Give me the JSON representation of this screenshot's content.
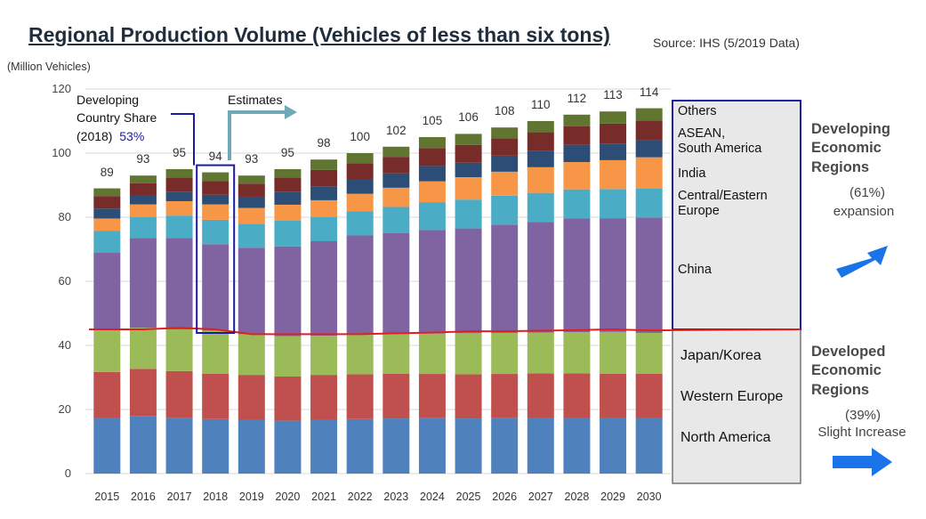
{
  "title": "Regional Production Volume (Vehicles of less than six tons)",
  "source": "Source:  IHS (5/2019 Data)",
  "unit": "(Million Vehicles)",
  "annotation": {
    "developing_share_line1": "Developing",
    "developing_share_line2": "Country Share",
    "developing_share_year": "(2018)",
    "developing_share_value": "53%",
    "estimates": "Estimates"
  },
  "legend_labels": {
    "others": "Others",
    "asean_line1": "ASEAN,",
    "asean_line2": "South America",
    "india": "India",
    "ce_line1": "Central/Eastern",
    "ce_line2": "Europe",
    "china": "China",
    "japan_korea": "Japan/Korea",
    "western_europe": "Western Europe",
    "north_america": "North America"
  },
  "side": {
    "developing_line1": "Developing",
    "developing_line2": "Economic",
    "developing_line3": "Regions",
    "developing_pct": "(61%)",
    "developing_note": "expansion",
    "developed_line1": "Developed",
    "developed_line2": "Economic",
    "developed_line3": "Regions",
    "developed_pct": "(39%)",
    "developed_note": "Slight Increase"
  },
  "colors": {
    "north_america": "#4f81bd",
    "western_europe": "#c0504d",
    "japan_korea": "#9bbb59",
    "china": "#8064a2",
    "central_eastern_europe": "#4bacc6",
    "india": "#f79646",
    "asean_south_america": "#2c4d75",
    "others_top": "#772c2a",
    "others_cap": "#5f7530",
    "divider_line": "#e02020",
    "developing_box": "#1a1aa6",
    "arrow": "#1a73e8"
  },
  "chart_data": {
    "type": "bar",
    "stacked": true,
    "ylim": [
      0,
      120
    ],
    "yticks": [
      0,
      20,
      40,
      60,
      80,
      100,
      120
    ],
    "ylabel": "(Million Vehicles)",
    "categories": [
      "2015",
      "2016",
      "2017",
      "2018",
      "2019",
      "2020",
      "2021",
      "2022",
      "2023",
      "2024",
      "2025",
      "2026",
      "2027",
      "2028",
      "2029",
      "2030"
    ],
    "totals": [
      89,
      93,
      95,
      94,
      93,
      95,
      98,
      100,
      102,
      105,
      106,
      108,
      110,
      112,
      113,
      114
    ],
    "series": [
      {
        "name": "North America",
        "values": [
          17.5,
          18,
          17.3,
          17,
          16.8,
          16.5,
          16.8,
          17,
          17.2,
          17.3,
          17.2,
          17.3,
          17.5,
          17.5,
          17.5,
          17.5
        ]
      },
      {
        "name": "Western Europe",
        "values": [
          14.2,
          14.7,
          14.7,
          14.2,
          14,
          13.8,
          14,
          14,
          14,
          13.8,
          13.8,
          13.8,
          13.8,
          13.8,
          13.7,
          13.7
        ]
      },
      {
        "name": "Japan/Korea",
        "values": [
          13.3,
          12.8,
          13,
          13.4,
          12.7,
          12.6,
          12.2,
          12.3,
          12.3,
          12.6,
          12.8,
          12.8,
          12.7,
          12.8,
          13,
          12.7
        ]
      },
      {
        "name": "China",
        "values": [
          24,
          28,
          28.5,
          27,
          27,
          28,
          29.5,
          31,
          31.5,
          32.3,
          32.7,
          33.8,
          34.5,
          35.5,
          35.5,
          36
        ]
      },
      {
        "name": "Central/Eastern Europe",
        "values": [
          6.8,
          6.5,
          7,
          7.6,
          7.4,
          8,
          7.5,
          7.5,
          8.2,
          8.7,
          9,
          9,
          9.1,
          9.1,
          9.1,
          9.1
        ]
      },
      {
        "name": "India",
        "values": [
          3.8,
          4,
          4.5,
          4.8,
          5,
          5,
          5.3,
          5.5,
          6,
          6.5,
          7,
          7.5,
          8,
          8.5,
          9,
          9.7
        ]
      },
      {
        "name": "ASEAN, South America",
        "values": [
          3.1,
          2.8,
          3,
          3,
          3.5,
          4.1,
          4.2,
          4.5,
          4.5,
          4.8,
          4.5,
          5,
          5.2,
          5.4,
          5.2,
          5.3
        ]
      },
      {
        "name": "Others",
        "values": [
          6.3,
          6.2,
          7,
          7,
          6.6,
          7,
          8.5,
          8.2,
          8.3,
          9,
          9,
          8.8,
          9.2,
          9.4,
          10,
          10
        ]
      }
    ],
    "developed_developing_divider": 45,
    "highlight_year": "2018"
  }
}
